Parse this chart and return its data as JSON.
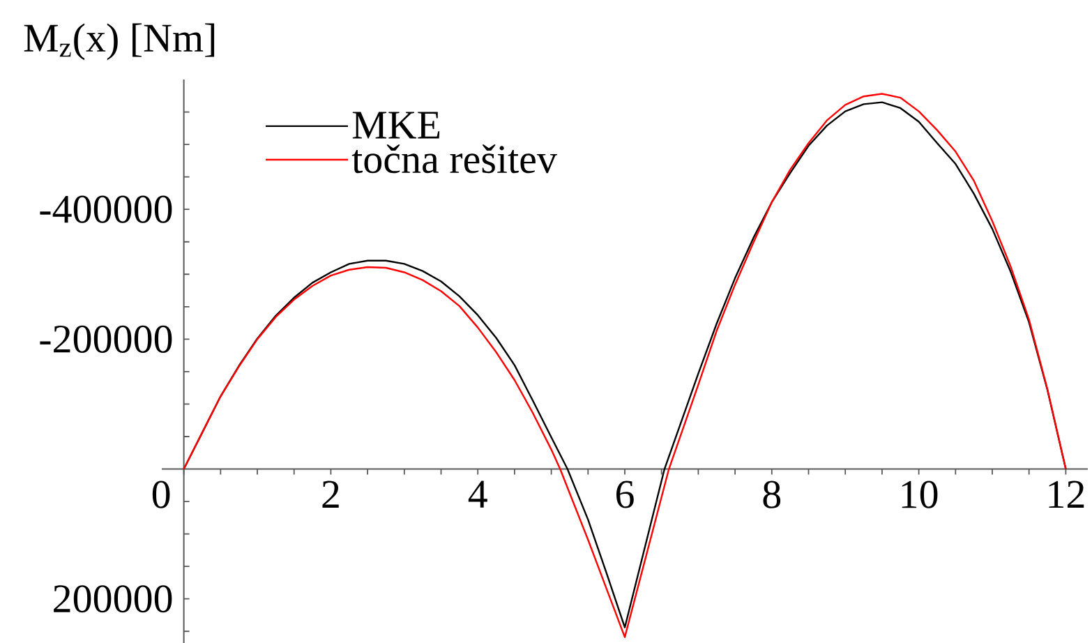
{
  "chart_data": {
    "type": "line",
    "ylabel": "M$_{z}$(x) [Nm]",
    "xlim": [
      -0.3,
      12.3
    ],
    "ylim": [
      268000,
      -600000
    ],
    "xticks": [
      0,
      {
        "value": 0.5,
        "label": null
      },
      {
        "value": 1,
        "label": null
      },
      {
        "value": 1.5,
        "label": null
      },
      2,
      {
        "value": 2.5,
        "label": null
      },
      {
        "value": 3,
        "label": null
      },
      {
        "value": 3.5,
        "label": null
      },
      4,
      {
        "value": 4.5,
        "label": null
      },
      {
        "value": 5,
        "label": null
      },
      {
        "value": 5.5,
        "label": null
      },
      6,
      {
        "value": 6.5,
        "label": null
      },
      {
        "value": 7,
        "label": null
      },
      {
        "value": 7.5,
        "label": null
      },
      8,
      {
        "value": 8.5,
        "label": null
      },
      {
        "value": 9,
        "label": null
      },
      {
        "value": 9.5,
        "label": null
      },
      10,
      {
        "value": 10.5,
        "label": null
      },
      {
        "value": 11,
        "label": null
      },
      {
        "value": 11.5,
        "label": null
      },
      12
    ],
    "yticks": [
      {
        "value": -550000,
        "label": null
      },
      {
        "value": -500000,
        "label": null
      },
      {
        "value": -450000,
        "label": null
      },
      -400000,
      {
        "value": -350000,
        "label": null
      },
      {
        "value": -300000,
        "label": null
      },
      {
        "value": -250000,
        "label": null
      },
      -200000,
      {
        "value": -150000,
        "label": null
      },
      {
        "value": -100000,
        "label": null
      },
      {
        "value": -50000,
        "label": null
      },
      {
        "value": 50000,
        "label": null
      },
      {
        "value": 100000,
        "label": null
      },
      {
        "value": 150000,
        "label": null
      },
      200000,
      {
        "value": 250000,
        "label": null
      }
    ],
    "legend": "top left",
    "series": [
      {
        "name": "MKE",
        "color": "#000000",
        "x": [
          0,
          0.25,
          0.5,
          0.75,
          1,
          1.25,
          1.5,
          1.75,
          2,
          2.25,
          2.5,
          2.75,
          3,
          3.25,
          3.5,
          3.75,
          4,
          4.25,
          4.5,
          4.75,
          5,
          5.22,
          5.5,
          5.75,
          6,
          6.25,
          6.54,
          7,
          7.25,
          7.5,
          7.75,
          8,
          8.25,
          8.5,
          8.75,
          9,
          9.25,
          9.5,
          9.75,
          10,
          10.25,
          10.5,
          10.75,
          11,
          11.25,
          11.5,
          11.75,
          12
        ],
        "values": [
          0,
          -56000,
          -112000,
          -159000,
          -201000,
          -236000,
          -264000,
          -287000,
          -303000,
          -316000,
          -321000,
          -321000,
          -316000,
          -305000,
          -289000,
          -266000,
          -237000,
          -202000,
          -160000,
          -105000,
          -49000,
          0,
          78000,
          160000,
          244000,
          131000,
          0,
          -147000,
          -224000,
          -294000,
          -356000,
          -411000,
          -456000,
          -498000,
          -529000,
          -551000,
          -562000,
          -565000,
          -556000,
          -535000,
          -502000,
          -470000,
          -424000,
          -370000,
          -304000,
          -226000,
          -122000,
          0
        ]
      },
      {
        "name": "točna rešitev",
        "color": "#ff0000",
        "x": [
          0,
          0.25,
          0.5,
          0.75,
          1,
          1.25,
          1.5,
          1.75,
          2,
          2.25,
          2.5,
          2.75,
          3,
          3.25,
          3.5,
          3.75,
          4,
          4.25,
          4.5,
          4.75,
          5,
          5.12,
          5.5,
          5.75,
          6,
          6.25,
          6.6,
          7,
          7.25,
          7.5,
          7.75,
          8,
          8.25,
          8.5,
          8.75,
          9,
          9.25,
          9.5,
          9.75,
          10,
          10.25,
          10.5,
          10.75,
          11,
          11.25,
          11.5,
          11.75,
          12
        ],
        "values": [
          0,
          -56000,
          -112000,
          -158000,
          -200000,
          -234000,
          -261000,
          -282000,
          -298000,
          -307000,
          -311000,
          -310000,
          -303000,
          -291000,
          -274000,
          -251000,
          -218000,
          -180000,
          -137000,
          -86000,
          -30000,
          0,
          109000,
          184000,
          259000,
          151000,
          0,
          -130000,
          -213000,
          -284000,
          -349000,
          -411000,
          -461000,
          -502000,
          -537000,
          -561000,
          -574000,
          -578000,
          -572000,
          -551000,
          -522000,
          -489000,
          -444000,
          -382000,
          -312000,
          -230000,
          -123000,
          0
        ]
      }
    ]
  }
}
